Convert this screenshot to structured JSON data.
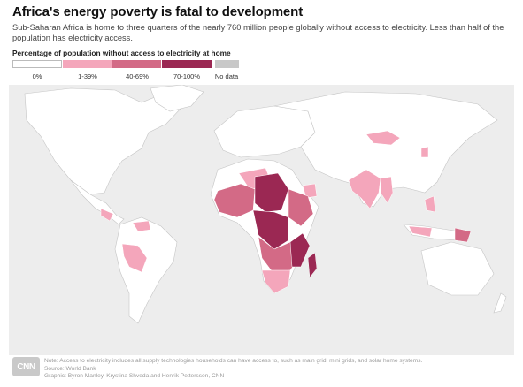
{
  "headline": "Africa's energy poverty is fatal to development",
  "subhead": "Sub-Saharan Africa is home to three quarters of the nearly 760 million people globally without access to electricity. Less than half of the population has electricity access.",
  "legend": {
    "title": "Percentage of population without access to electricity at home",
    "items": [
      {
        "label": "0%",
        "color": "#ffffff"
      },
      {
        "label": "1-39%",
        "color": "#f4a6bb"
      },
      {
        "label": "40-69%",
        "color": "#d36a86"
      },
      {
        "label": "70-100%",
        "color": "#9b2853"
      },
      {
        "label": "No data",
        "color": "#c8c8c8"
      }
    ]
  },
  "colors": {
    "ocean": "#ededed",
    "land": "#ffffff",
    "border": "#c5c5c5",
    "low": "#f4a6bb",
    "mid": "#d36a86",
    "high": "#9b2853"
  },
  "footer": {
    "logo": "CNN",
    "note": "Note: Access to electricity includes all supply technologies households can have access to, such as main grid, mini grids, and solar home systems.",
    "source": "Source: World Bank",
    "graphic": "Graphic: Byron Manley, Krystina Shveda and Henrik Pettersson, CNN"
  }
}
